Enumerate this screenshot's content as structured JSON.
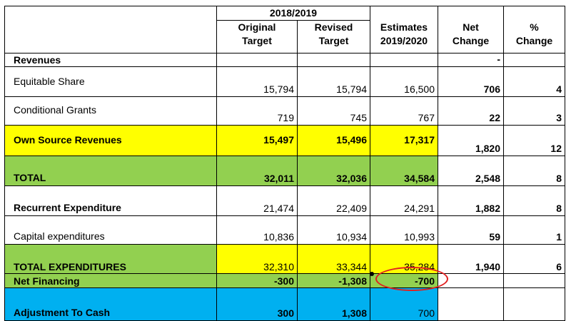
{
  "header": {
    "period": "2018/2019",
    "col_original": [
      "Original",
      "Target"
    ],
    "col_revised": [
      "Revised",
      "Target"
    ],
    "col_estimates": [
      "Estimates",
      "2019/2020"
    ],
    "col_net_change": [
      "Net",
      "Change"
    ],
    "col_pct_change": [
      "%",
      "Change"
    ]
  },
  "rows": {
    "revenues": {
      "label": "Revenues",
      "net": "-"
    },
    "equitable_share": {
      "label": "Equitable Share",
      "original": "15,794",
      "revised": "15,794",
      "estimates": "16,500",
      "net": "706",
      "pct": "4"
    },
    "conditional_grants": {
      "label": "Conditional  Grants",
      "original": "719",
      "revised": "745",
      "estimates": "767",
      "net": "22",
      "pct": "3"
    },
    "own_source": {
      "label": "Own Source  Revenues",
      "original": "15,497",
      "revised": "15,496",
      "estimates": "17,317",
      "net": "1,820",
      "pct": "12"
    },
    "total": {
      "label": "TOTAL",
      "original": "32,011",
      "revised": "32,036",
      "estimates": "34,584",
      "net": "2,548",
      "pct": "8"
    },
    "recurrent": {
      "label": "Recurrent  Expenditure",
      "original": "21,474",
      "revised": "22,409",
      "estimates": "24,291",
      "net": "1,882",
      "pct": "8"
    },
    "capital": {
      "label": "Capital expenditures",
      "original": "10,836",
      "revised": "10,934",
      "estimates": "10,993",
      "net": "59",
      "pct": "1"
    },
    "total_expenditures": {
      "label": "TOTAL  EXPENDITURES",
      "original": "32,310",
      "revised": "33,344",
      "estimates": "35,284",
      "net": "1,940",
      "pct": "6"
    },
    "net_financing": {
      "label": "Net Financing",
      "original": "-300",
      "revised": "-1,308",
      "estimates": "-700"
    },
    "adjustment": {
      "label": "Adjustment  To Cash",
      "original": "300",
      "revised": "1,308",
      "estimates": "700"
    }
  },
  "colors": {
    "yellow": "#ffff00",
    "green": "#92d050",
    "blue": "#00b0f0",
    "highlight_circle": "#e02020"
  }
}
